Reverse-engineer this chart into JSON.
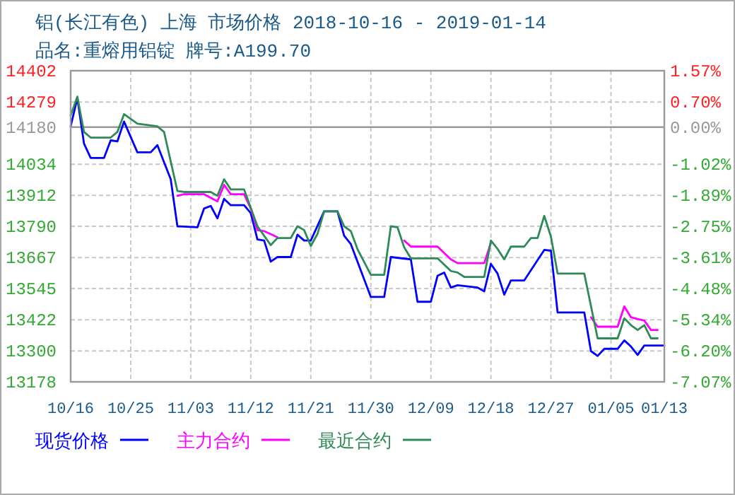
{
  "chart_data": {
    "type": "line",
    "title": "铝(长江有色) 上海 市场价格 2018-10-16 - 2019-01-14",
    "subtitle": "品名:重熔用铝锭 牌号:A199.70",
    "xlim": [
      "2018-10-16",
      "2019-01-13"
    ],
    "xticks": [
      {
        "value": "2018-10-16",
        "label": "10/16"
      },
      {
        "value": "2018-10-25",
        "label": "10/25"
      },
      {
        "value": "2018-11-03",
        "label": "11/03"
      },
      {
        "value": "2018-11-12",
        "label": "11/12"
      },
      {
        "value": "2018-11-21",
        "label": "11/21"
      },
      {
        "value": "2018-11-30",
        "label": "11/30"
      },
      {
        "value": "2018-12-09",
        "label": "12/09"
      },
      {
        "value": "2018-12-18",
        "label": "12/18"
      },
      {
        "value": "2018-12-27",
        "label": "12/27"
      },
      {
        "value": "2019-01-05",
        "label": "01/05"
      },
      {
        "value": "2019-01-13",
        "label": "01/13"
      }
    ],
    "ylim": [
      13178,
      14402
    ],
    "yticks": [
      13178,
      13300,
      13422,
      13545,
      13667,
      13790,
      13912,
      14034,
      14279,
      14402
    ],
    "y2lim": [
      -7.07,
      1.57
    ],
    "y2ticks": [
      {
        "value": -7.07,
        "label": "-7.07%"
      },
      {
        "value": -6.2,
        "label": "-6.20%"
      },
      {
        "value": -5.34,
        "label": "-5.34%"
      },
      {
        "value": -4.48,
        "label": "-4.48%"
      },
      {
        "value": -3.61,
        "label": "-3.61%"
      },
      {
        "value": -2.75,
        "label": "-2.75%"
      },
      {
        "value": -1.89,
        "label": "-1.89%"
      },
      {
        "value": -1.02,
        "label": "-1.02%"
      },
      {
        "value": 0,
        "label": "0.00%"
      },
      {
        "value": 0.7,
        "label": "0.70%"
      },
      {
        "value": 1.57,
        "label": "1.57%"
      }
    ],
    "ref_lines": [
      {
        "axis": "y",
        "value": 14180,
        "label": "14180",
        "color": "#999999"
      }
    ],
    "grid": true,
    "legend": "bottom",
    "series": [
      {
        "name": "现货价格",
        "color": "#0000ff",
        "x": [
          "2018-10-16",
          "2018-10-17",
          "2018-10-18",
          "2018-10-19",
          "2018-10-21",
          "2018-10-22",
          "2018-10-23",
          "2018-10-24",
          "2018-10-26",
          "2018-10-28",
          "2018-10-29",
          "2018-10-31",
          "2018-11-01",
          "2018-11-04",
          "2018-11-05",
          "2018-11-06",
          "2018-11-07",
          "2018-11-08",
          "2018-11-09",
          "2018-11-11",
          "2018-11-12",
          "2018-11-13",
          "2018-11-14",
          "2018-11-15",
          "2018-11-16",
          "2018-11-18",
          "2018-11-19",
          "2018-11-20",
          "2018-11-21",
          "2018-11-23",
          "2018-11-25",
          "2018-11-26",
          "2018-11-27",
          "2018-11-30",
          "2018-12-02",
          "2018-12-03",
          "2018-12-06",
          "2018-12-07",
          "2018-12-09",
          "2018-12-10",
          "2018-12-11",
          "2018-12-12",
          "2018-12-13",
          "2018-12-16",
          "2018-12-17",
          "2018-12-18",
          "2018-12-19",
          "2018-12-20",
          "2018-12-21",
          "2018-12-23",
          "2018-12-26",
          "2018-12-27",
          "2018-12-28",
          "2019-01-01",
          "2019-01-02",
          "2019-01-03",
          "2019-01-04",
          "2019-01-06",
          "2019-01-07",
          "2019-01-08",
          "2019-01-09",
          "2019-01-10",
          "2019-01-13"
        ],
        "values": [
          14183,
          14294,
          14115,
          14059,
          14059,
          14128,
          14124,
          14202,
          14081,
          14081,
          14109,
          13975,
          13790,
          13786,
          13860,
          13870,
          13821,
          13898,
          13873,
          13873,
          13842,
          13738,
          13734,
          13651,
          13669,
          13669,
          13757,
          13734,
          13734,
          13849,
          13849,
          13753,
          13720,
          13512,
          13512,
          13669,
          13660,
          13493,
          13493,
          13595,
          13608,
          13549,
          13558,
          13549,
          13534,
          13642,
          13604,
          13521,
          13577,
          13577,
          13697,
          13694,
          13451,
          13451,
          13299,
          13280,
          13308,
          13308,
          13341,
          13317,
          13284,
          13321,
          13321
        ]
      },
      {
        "name": "主力合约",
        "color": "#ff00ff",
        "x": [
          "2018-11-01",
          "2018-11-02",
          "2018-11-05",
          "2018-11-07",
          "2018-11-08",
          "2018-11-09",
          "2018-11-11",
          "2018-11-12",
          "2018-11-13",
          "2018-11-14",
          "2018-11-16"
        ],
        "values": [
          13910,
          13916,
          13916,
          13888,
          13953,
          13916,
          13916,
          13860,
          13775,
          13771,
          13747
        ]
      },
      {
        "color": "#ff00ff",
        "x": [
          "2018-12-05",
          "2018-12-06",
          "2018-12-10",
          "2018-12-12",
          "2018-12-13",
          "2018-12-17",
          "2018-12-18"
        ],
        "values": [
          13734,
          13710,
          13710,
          13660,
          13645,
          13645,
          13725
        ]
      },
      {
        "color": "#ff00ff",
        "x": [
          "2019-01-02",
          "2019-01-03",
          "2019-01-06",
          "2019-01-07",
          "2019-01-08",
          "2019-01-09",
          "2019-01-10",
          "2019-01-11",
          "2019-01-12"
        ],
        "values": [
          13432,
          13395,
          13395,
          13475,
          13432,
          13425,
          13419,
          13382,
          13382
        ]
      },
      {
        "name": "最近合约",
        "color": "#2e8b57",
        "x": [
          "2018-10-16",
          "2018-10-17",
          "2018-10-18",
          "2018-10-19",
          "2018-10-22",
          "2018-10-23",
          "2018-10-24",
          "2018-10-26",
          "2018-10-29",
          "2018-10-30",
          "2018-11-01",
          "2018-11-02",
          "2018-11-06",
          "2018-11-07",
          "2018-11-08",
          "2018-11-09",
          "2018-11-11",
          "2018-11-13",
          "2018-11-15",
          "2018-11-16",
          "2018-11-18",
          "2018-11-19",
          "2018-11-20",
          "2018-11-21",
          "2018-11-22",
          "2018-11-23",
          "2018-11-25",
          "2018-11-26",
          "2018-11-27",
          "2018-11-28",
          "2018-11-30",
          "2018-12-02",
          "2018-12-03",
          "2018-12-04",
          "2018-12-05",
          "2018-12-06",
          "2018-12-10",
          "2018-12-12",
          "2018-12-13",
          "2018-12-14",
          "2018-12-17",
          "2018-12-18",
          "2018-12-19",
          "2018-12-20",
          "2018-12-21",
          "2018-12-23",
          "2018-12-24",
          "2018-12-25",
          "2018-12-26",
          "2018-12-27",
          "2018-12-28",
          "2019-01-01",
          "2019-01-03",
          "2019-01-06",
          "2019-01-07",
          "2019-01-08",
          "2019-01-09",
          "2019-01-10",
          "2019-01-11",
          "2019-01-12"
        ],
        "values": [
          14226,
          14300,
          14161,
          14139,
          14139,
          14161,
          14231,
          14194,
          14183,
          14161,
          13929,
          13925,
          13925,
          13910,
          13975,
          13935,
          13935,
          13790,
          13716,
          13744,
          13744,
          13790,
          13775,
          13712,
          13760,
          13849,
          13849,
          13790,
          13771,
          13700,
          13599,
          13599,
          13790,
          13786,
          13707,
          13664,
          13664,
          13614,
          13608,
          13591,
          13591,
          13734,
          13701,
          13660,
          13710,
          13710,
          13744,
          13744,
          13831,
          13749,
          13604,
          13604,
          13349,
          13349,
          13428,
          13401,
          13382,
          13401,
          13349,
          13349
        ]
      }
    ]
  }
}
